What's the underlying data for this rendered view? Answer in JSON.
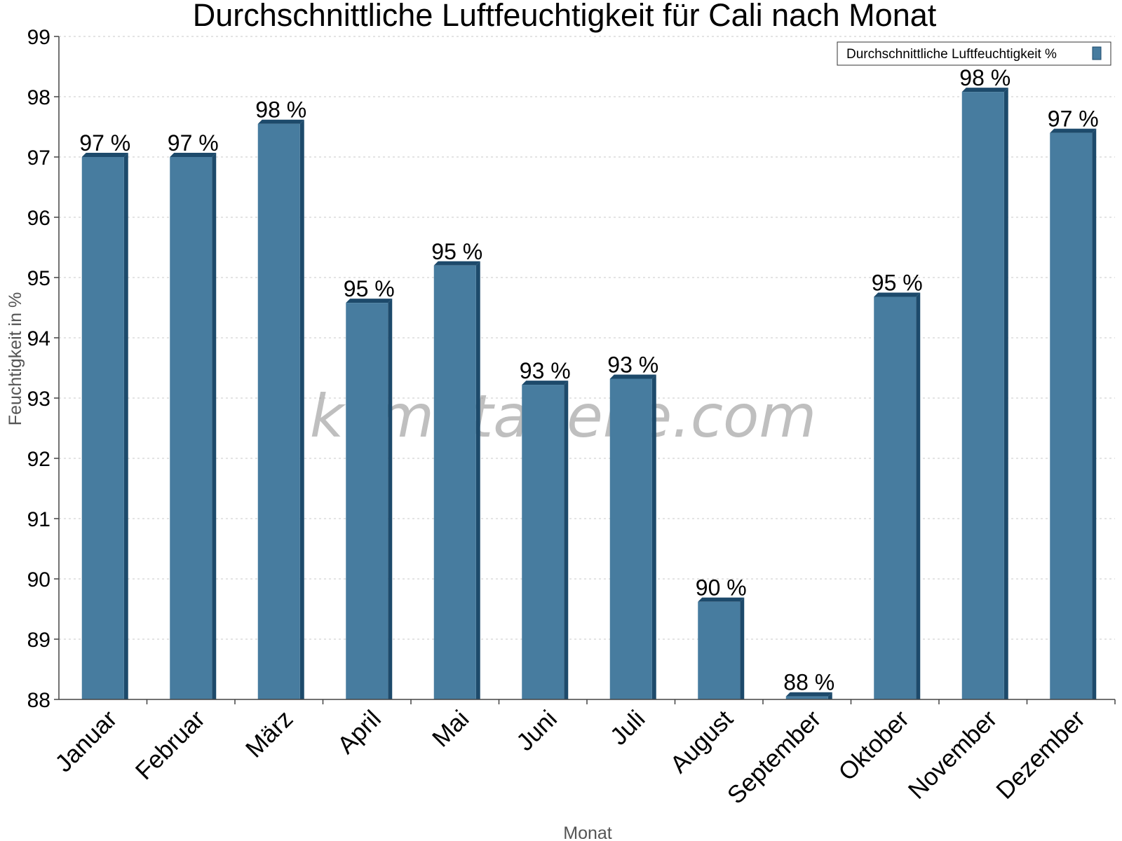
{
  "chart_data": {
    "type": "bar",
    "title": "Durchschnittliche Luftfeuchtigkeit für Cali nach Monat",
    "xlabel": "Monat",
    "ylabel": "Feuchtigkeit in %",
    "ylim": [
      88,
      99
    ],
    "yticks": [
      "88",
      "89",
      "90",
      "91",
      "92",
      "93",
      "94",
      "95",
      "96",
      "97",
      "98",
      "99"
    ],
    "categories": [
      "Januar",
      "Februar",
      "März",
      "April",
      "Mai",
      "Juni",
      "Juli",
      "August",
      "September",
      "Oktober",
      "November",
      "Dezember"
    ],
    "series": [
      {
        "name": "Durchschnittliche Luftfeuchtigkeit %",
        "values": [
          97.0,
          97.0,
          97.55,
          94.58,
          95.2,
          93.22,
          93.32,
          89.62,
          88.05,
          94.68,
          98.08,
          97.4
        ],
        "labels": [
          "97 %",
          "97 %",
          "98 %",
          "95 %",
          "95 %",
          "93 %",
          "93 %",
          "90 %",
          "88 %",
          "95 %",
          "98 %",
          "97 %"
        ],
        "color": "#477c9f",
        "side_color": "#1d4a6b"
      }
    ],
    "grid": "horizontal-dotted",
    "legend_position": "top-right",
    "watermark": "klimatabelle.com"
  }
}
